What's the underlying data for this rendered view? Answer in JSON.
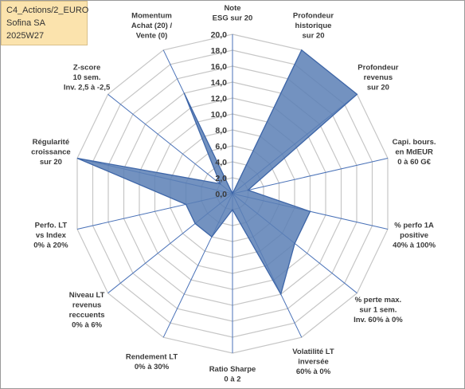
{
  "header": {
    "line1": "C4_Actions/2_EURO",
    "line2": "Sofina SA",
    "line3": "2025W27"
  },
  "colors": {
    "fill": "#5b7fb5",
    "stroke": "#3e66a8",
    "axis": "#4a72b8",
    "grid": "#c6c6c6",
    "infobox": "#fbe3ad"
  },
  "chart_data": {
    "type": "radar",
    "title": "",
    "rmin": 0,
    "rmax": 20,
    "ticks": [
      "0,0",
      "2,0",
      "4,0",
      "6,0",
      "8,0",
      "10,0",
      "12,0",
      "14,0",
      "16,0",
      "18,0",
      "20,0"
    ],
    "grid": true,
    "categories": [
      [
        "Note",
        "ESG sur 20"
      ],
      [
        "Profondeur",
        "historique",
        "sur 20"
      ],
      [
        "Profondeur",
        "revenus",
        "sur 20"
      ],
      [
        "Capi. bours.",
        "en MdEUR",
        "0 à 60 G€"
      ],
      [
        "% perfo 1A",
        "positive",
        "40% à 100%"
      ],
      [
        "% perte max.",
        "sur 1 sem.",
        "Inv. 60% à 0%"
      ],
      [
        "Volatilité LT",
        "inversée",
        "60% à 0%"
      ],
      [
        "Ratio Sharpe",
        "0 à 2"
      ],
      [
        "Rendement LT",
        "0% à 30%"
      ],
      [
        "Niveau LT",
        "revenus",
        "reccuents",
        "0% à 6%"
      ],
      [
        "Perfo. LT",
        "vs Index",
        "0% à 20%"
      ],
      [
        "Régularité",
        "croissance",
        "sur 20"
      ],
      [
        "Z-score",
        "10 sem.",
        "Inv. 2,5 à -2,5"
      ],
      [
        "Momentum",
        "Achat (20) /",
        "Vente (0)"
      ]
    ],
    "series": [
      {
        "values": [
          0,
          20,
          20,
          2,
          10,
          10,
          14,
          2,
          6,
          6,
          6,
          20,
          2,
          14
        ]
      }
    ]
  }
}
